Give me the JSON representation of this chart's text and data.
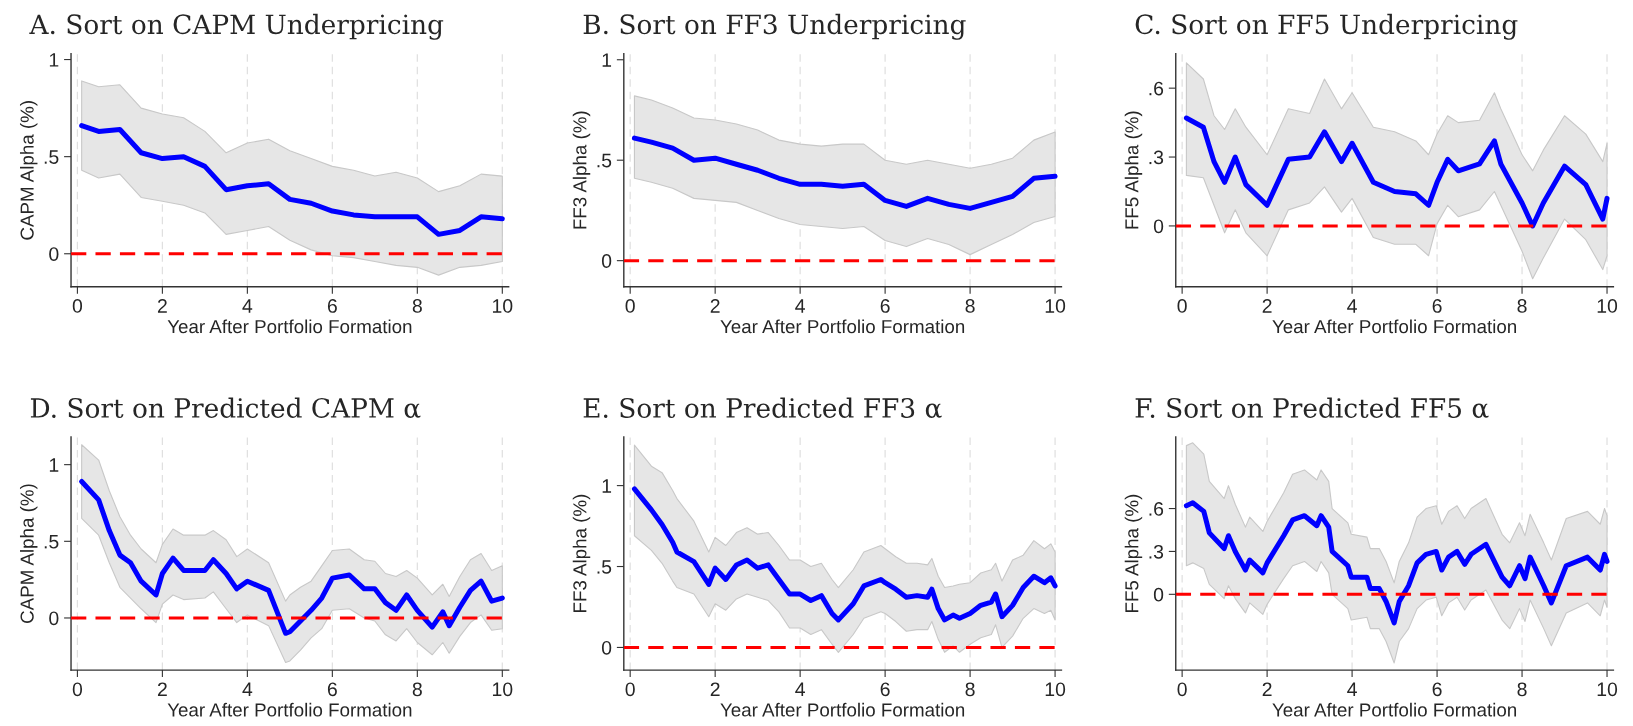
{
  "chart_data": [
    {
      "type": "line",
      "title": "A. Sort on CAPM Underpricing",
      "xlabel": "Year After Portfolio Formation",
      "ylabel": "CAPM Alpha (%)",
      "grid": "x",
      "xlim": [
        -0.15,
        10.15
      ],
      "xticks": [
        0,
        2,
        4,
        6,
        8,
        10
      ],
      "ylim": [
        -0.17,
        1.03
      ],
      "yticks": [
        0,
        {
          "value": 0.5,
          "label": ".5"
        },
        1
      ],
      "x": [
        0.1,
        0.5,
        1,
        1.5,
        2,
        2.5,
        3,
        3.5,
        4,
        4.5,
        5,
        5.5,
        6,
        6.5,
        7,
        7.5,
        8,
        8.5,
        9,
        9.5,
        10
      ],
      "series": [
        {
          "color": "#0000ff",
          "values": [
            0.66,
            0.63,
            0.64,
            0.52,
            0.49,
            0.5,
            0.45,
            0.33,
            0.35,
            0.36,
            0.28,
            0.26,
            0.22,
            0.2,
            0.19,
            0.19,
            0.19,
            0.1,
            0.12,
            0.19,
            0.18
          ],
          "upper": [
            0.89,
            0.86,
            0.87,
            0.75,
            0.72,
            0.7,
            0.63,
            0.52,
            0.57,
            0.59,
            0.53,
            0.49,
            0.45,
            0.43,
            0.4,
            0.42,
            0.39,
            0.32,
            0.35,
            0.41,
            0.4
          ],
          "lower": [
            0.43,
            0.39,
            0.41,
            0.29,
            0.27,
            0.25,
            0.21,
            0.1,
            0.12,
            0.14,
            0.07,
            0.02,
            -0.01,
            -0.02,
            -0.04,
            -0.06,
            -0.07,
            -0.11,
            -0.07,
            -0.06,
            -0.04
          ]
        }
      ],
      "ref_lines": [
        {
          "axis": "y",
          "value": 0,
          "color": "#ff0000",
          "line_style": "dashed"
        }
      ]
    },
    {
      "type": "line",
      "title": "B. Sort on FF3 Underpricing",
      "xlabel": "Year After Portfolio Formation",
      "ylabel": "FF3 Alpha (%)",
      "grid": "x",
      "xlim": [
        -0.15,
        10.15
      ],
      "xticks": [
        0,
        2,
        4,
        6,
        8,
        10
      ],
      "ylim": [
        -0.13,
        1.03
      ],
      "yticks": [
        0,
        {
          "value": 0.5,
          "label": ".5"
        },
        1
      ],
      "x": [
        0.1,
        0.5,
        1,
        1.5,
        2,
        2.5,
        3,
        3.5,
        4,
        4.5,
        5,
        5.5,
        6,
        6.5,
        7,
        7.5,
        8,
        8.5,
        9,
        9.5,
        10
      ],
      "series": [
        {
          "color": "#0000ff",
          "values": [
            0.61,
            0.59,
            0.56,
            0.5,
            0.51,
            0.48,
            0.45,
            0.41,
            0.38,
            0.38,
            0.37,
            0.38,
            0.3,
            0.27,
            0.31,
            0.28,
            0.26,
            0.29,
            0.32,
            0.41,
            0.42
          ],
          "upper": [
            0.82,
            0.8,
            0.76,
            0.71,
            0.7,
            0.68,
            0.65,
            0.6,
            0.58,
            0.57,
            0.58,
            0.58,
            0.5,
            0.48,
            0.5,
            0.48,
            0.46,
            0.48,
            0.51,
            0.6,
            0.64
          ],
          "lower": [
            0.41,
            0.39,
            0.36,
            0.31,
            0.3,
            0.29,
            0.25,
            0.21,
            0.18,
            0.17,
            0.16,
            0.17,
            0.1,
            0.07,
            0.11,
            0.08,
            0.03,
            0.08,
            0.13,
            0.19,
            0.22
          ]
        }
      ],
      "ref_lines": [
        {
          "axis": "y",
          "value": 0,
          "color": "#ff0000",
          "line_style": "dashed"
        }
      ]
    },
    {
      "type": "line",
      "title": "C. Sort on FF5 Underpricing",
      "xlabel": "Year After Portfolio Formation",
      "ylabel": "FF5 Alpha (%)",
      "grid": "x",
      "xlim": [
        -0.15,
        10.15
      ],
      "xticks": [
        0,
        2,
        4,
        6,
        8,
        10
      ],
      "ylim": [
        -0.265,
        0.75
      ],
      "yticks": [
        0,
        {
          "value": 0.3,
          "label": ".3"
        },
        {
          "value": 0.6,
          "label": ".6"
        }
      ],
      "x": [
        0.1,
        0.5,
        0.75,
        1.0,
        1.25,
        1.5,
        2.0,
        2.5,
        3.0,
        3.35,
        3.75,
        4.0,
        4.5,
        5.0,
        5.5,
        5.8,
        6.0,
        6.25,
        6.5,
        7.0,
        7.35,
        7.5,
        8.0,
        8.25,
        8.5,
        9.0,
        9.5,
        9.9,
        10
      ],
      "series": [
        {
          "color": "#0000ff",
          "values": [
            0.47,
            0.43,
            0.28,
            0.19,
            0.3,
            0.18,
            0.09,
            0.29,
            0.3,
            0.41,
            0.28,
            0.36,
            0.19,
            0.15,
            0.14,
            0.09,
            0.19,
            0.29,
            0.24,
            0.27,
            0.37,
            0.27,
            0.1,
            0,
            0.1,
            0.26,
            0.18,
            0.03,
            0.12
          ],
          "upper": [
            0.71,
            0.64,
            0.48,
            0.42,
            0.51,
            0.43,
            0.31,
            0.51,
            0.49,
            0.64,
            0.51,
            0.58,
            0.43,
            0.41,
            0.37,
            0.31,
            0.4,
            0.48,
            0.45,
            0.46,
            0.58,
            0.51,
            0.31,
            0.24,
            0.33,
            0.48,
            0.4,
            0.28,
            0.36
          ],
          "lower": [
            0.22,
            0.21,
            0.09,
            -0.03,
            0.07,
            -0.03,
            -0.13,
            0.07,
            0.1,
            0.17,
            0.06,
            0.12,
            -0.05,
            -0.08,
            -0.08,
            -0.13,
            0.01,
            0.09,
            0.04,
            0.07,
            0.15,
            0.09,
            -0.11,
            -0.23,
            -0.14,
            0.03,
            -0.06,
            -0.19,
            -0.13
          ]
        }
      ],
      "ref_lines": [
        {
          "axis": "y",
          "value": 0,
          "color": "#ff0000",
          "line_style": "dashed"
        }
      ]
    },
    {
      "type": "line",
      "title": "D. Sort on Predicted CAPM α",
      "xlabel": "Year After Portfolio Formation",
      "ylabel": "CAPM Alpha (%)",
      "grid": "x",
      "xlim": [
        -0.15,
        10.15
      ],
      "xticks": [
        0,
        2,
        4,
        6,
        8,
        10
      ],
      "ylim": [
        -0.34,
        1.18
      ],
      "yticks": [
        0,
        {
          "value": 0.5,
          "label": ".5"
        },
        1
      ],
      "x": [
        0.1,
        0.5,
        0.75,
        1.0,
        1.25,
        1.5,
        1.85,
        2.0,
        2.25,
        2.5,
        3.0,
        3.2,
        3.5,
        3.75,
        4.0,
        4.5,
        4.9,
        5.0,
        5.25,
        5.5,
        5.75,
        6.0,
        6.4,
        6.75,
        7.0,
        7.25,
        7.5,
        7.75,
        8.0,
        8.35,
        8.6,
        8.75,
        9.0,
        9.25,
        9.5,
        9.75,
        10
      ],
      "series": [
        {
          "color": "#0000ff",
          "values": [
            0.89,
            0.77,
            0.57,
            0.41,
            0.36,
            0.24,
            0.15,
            0.29,
            0.39,
            0.31,
            0.31,
            0.38,
            0.29,
            0.19,
            0.24,
            0.18,
            -0.1,
            -0.09,
            -0.02,
            0.05,
            0.13,
            0.26,
            0.28,
            0.19,
            0.19,
            0.1,
            0.05,
            0.15,
            0.05,
            -0.06,
            0.04,
            -0.05,
            0.07,
            0.18,
            0.24,
            0.11,
            0.13
          ],
          "upper": [
            1.13,
            1.03,
            0.83,
            0.66,
            0.54,
            0.45,
            0.36,
            0.48,
            0.58,
            0.54,
            0.54,
            0.57,
            0.51,
            0.4,
            0.45,
            0.36,
            0.11,
            0.15,
            0.2,
            0.24,
            0.34,
            0.44,
            0.45,
            0.38,
            0.37,
            0.29,
            0.27,
            0.31,
            0.26,
            0.15,
            0.22,
            0.14,
            0.27,
            0.38,
            0.42,
            0.31,
            0.34
          ],
          "lower": [
            0.65,
            0.54,
            0.36,
            0.2,
            0.13,
            0.06,
            -0.03,
            0.09,
            0.15,
            0.12,
            0.13,
            0.17,
            0.06,
            -0.03,
            0.02,
            -0.05,
            -0.29,
            -0.28,
            -0.21,
            -0.13,
            -0.07,
            0.05,
            0.06,
            0.0,
            -0.02,
            -0.11,
            -0.15,
            -0.07,
            -0.16,
            -0.24,
            -0.16,
            -0.23,
            -0.12,
            -0.03,
            0.02,
            -0.08,
            -0.07
          ]
        }
      ],
      "ref_lines": [
        {
          "axis": "y",
          "value": 0,
          "color": "#ff0000",
          "line_style": "dashed"
        }
      ]
    },
    {
      "type": "line",
      "title": "E. Sort on Predicted FF3 α",
      "xlabel": "Year After Portfolio Formation",
      "ylabel": "FF3 Alpha (%)",
      "grid": "x",
      "xlim": [
        -0.15,
        10.15
      ],
      "xticks": [
        0,
        2,
        4,
        6,
        8,
        10
      ],
      "ylim": [
        -0.14,
        1.3
      ],
      "yticks": [
        0,
        {
          "value": 0.5,
          "label": ".5"
        },
        1
      ],
      "x": [
        0.1,
        0.5,
        0.75,
        1.0,
        1.1,
        1.5,
        1.85,
        2.0,
        2.25,
        2.5,
        2.75,
        3.0,
        3.25,
        3.5,
        3.75,
        4.0,
        4.25,
        4.5,
        4.75,
        4.9,
        5.25,
        5.5,
        5.9,
        6.0,
        6.25,
        6.5,
        6.75,
        7.0,
        7.1,
        7.25,
        7.4,
        7.6,
        7.75,
        8.0,
        8.25,
        8.5,
        8.6,
        8.75,
        9.0,
        9.25,
        9.5,
        9.75,
        9.9,
        10
      ],
      "series": [
        {
          "color": "#0000ff",
          "values": [
            0.98,
            0.85,
            0.76,
            0.65,
            0.59,
            0.53,
            0.39,
            0.49,
            0.42,
            0.51,
            0.54,
            0.49,
            0.51,
            0.42,
            0.33,
            0.33,
            0.29,
            0.32,
            0.21,
            0.17,
            0.27,
            0.38,
            0.42,
            0.4,
            0.36,
            0.31,
            0.32,
            0.31,
            0.36,
            0.24,
            0.17,
            0.2,
            0.18,
            0.21,
            0.26,
            0.28,
            0.33,
            0.19,
            0.26,
            0.37,
            0.44,
            0.4,
            0.43,
            0.38
          ],
          "upper": [
            1.25,
            1.12,
            1.08,
            0.97,
            0.92,
            0.78,
            0.59,
            0.68,
            0.63,
            0.71,
            0.74,
            0.7,
            0.71,
            0.63,
            0.54,
            0.54,
            0.5,
            0.52,
            0.42,
            0.37,
            0.48,
            0.59,
            0.63,
            0.61,
            0.56,
            0.52,
            0.52,
            0.51,
            0.55,
            0.44,
            0.37,
            0.38,
            0.39,
            0.4,
            0.46,
            0.48,
            0.52,
            0.41,
            0.54,
            0.57,
            0.66,
            0.61,
            0.64,
            0.59
          ],
          "lower": [
            0.69,
            0.6,
            0.52,
            0.41,
            0.37,
            0.33,
            0.19,
            0.27,
            0.23,
            0.3,
            0.33,
            0.31,
            0.29,
            0.22,
            0.12,
            0.12,
            0.08,
            0.11,
            0.02,
            -0.03,
            0.08,
            0.18,
            0.22,
            0.21,
            0.16,
            0.1,
            0.11,
            0.11,
            0.16,
            0.05,
            -0.03,
            0.01,
            -0.03,
            0.02,
            0.06,
            0.08,
            0.14,
            0.0,
            0.07,
            0.18,
            0.24,
            0.21,
            0.23,
            0.17
          ]
        }
      ],
      "ref_lines": [
        {
          "axis": "y",
          "value": 0,
          "color": "#ff0000",
          "line_style": "dashed"
        }
      ]
    },
    {
      "type": "line",
      "title": "F. Sort on Predicted FF5 α",
      "xlabel": "Year After Portfolio Formation",
      "ylabel": "FF5 Alpha (%)",
      "grid": "x",
      "xlim": [
        -0.15,
        10.15
      ],
      "xticks": [
        0,
        2,
        4,
        6,
        8,
        10
      ],
      "ylim": [
        -0.53,
        1.1
      ],
      "yticks": [
        0,
        {
          "value": 0.3,
          "label": ".3"
        },
        {
          "value": 0.6,
          "label": ".6"
        }
      ],
      "x": [
        0.1,
        0.25,
        0.51,
        0.64,
        0.99,
        1.09,
        1.25,
        1.49,
        1.59,
        1.9,
        2.0,
        2.39,
        2.6,
        2.88,
        3.17,
        3.27,
        3.45,
        3.53,
        3.9,
        3.98,
        4.35,
        4.43,
        4.64,
        4.8,
        4.99,
        5.11,
        5.33,
        5.53,
        5.74,
        5.98,
        6.11,
        6.27,
        6.47,
        6.65,
        6.8,
        7.15,
        7.53,
        7.71,
        7.94,
        8.07,
        8.19,
        8.51,
        8.69,
        9.04,
        9.54,
        9.84,
        9.94,
        10
      ],
      "series": [
        {
          "color": "#0000ff",
          "values": [
            0.62,
            0.64,
            0.58,
            0.43,
            0.32,
            0.41,
            0.3,
            0.17,
            0.24,
            0.15,
            0.22,
            0.41,
            0.52,
            0.55,
            0.48,
            0.55,
            0.47,
            0.3,
            0.2,
            0.12,
            0.12,
            0.04,
            0.04,
            -0.05,
            -0.2,
            -0.05,
            0.06,
            0.22,
            0.28,
            0.3,
            0.17,
            0.26,
            0.3,
            0.21,
            0.28,
            0.35,
            0.12,
            0.06,
            0.2,
            0.11,
            0.26,
            0.06,
            -0.06,
            0.2,
            0.26,
            0.17,
            0.28,
            0.23
          ],
          "upper": [
            1.04,
            1.06,
            0.98,
            0.79,
            0.67,
            0.76,
            0.63,
            0.47,
            0.54,
            0.44,
            0.51,
            0.71,
            0.84,
            0.87,
            0.8,
            0.87,
            0.79,
            0.6,
            0.5,
            0.42,
            0.4,
            0.32,
            0.32,
            0.23,
            0.08,
            0.23,
            0.36,
            0.54,
            0.6,
            0.62,
            0.49,
            0.58,
            0.62,
            0.53,
            0.6,
            0.67,
            0.42,
            0.36,
            0.5,
            0.41,
            0.56,
            0.36,
            0.24,
            0.53,
            0.58,
            0.49,
            0.6,
            0.55
          ],
          "lower": [
            0.2,
            0.22,
            0.18,
            0.07,
            -0.03,
            0.06,
            -0.03,
            -0.13,
            -0.06,
            -0.14,
            -0.07,
            0.11,
            0.2,
            0.23,
            0.16,
            0.23,
            0.15,
            0.0,
            -0.1,
            -0.18,
            -0.16,
            -0.24,
            -0.24,
            -0.33,
            -0.48,
            -0.33,
            -0.24,
            -0.1,
            -0.04,
            -0.02,
            -0.15,
            -0.06,
            -0.02,
            -0.11,
            -0.04,
            0.03,
            -0.18,
            -0.24,
            -0.1,
            -0.19,
            -0.04,
            -0.24,
            -0.36,
            -0.13,
            -0.06,
            -0.15,
            -0.04,
            -0.09
          ]
        }
      ],
      "ref_lines": [
        {
          "axis": "y",
          "value": 0,
          "color": "#ff0000",
          "line_style": "dashed"
        }
      ]
    }
  ]
}
